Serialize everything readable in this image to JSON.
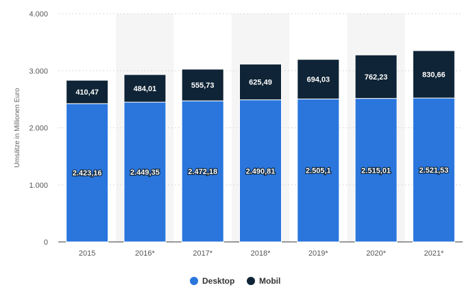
{
  "chart_data": {
    "type": "bar",
    "stacked": true,
    "title": "",
    "xlabel": "",
    "ylabel": "Umsätze in Millionen Euro",
    "ylim": [
      0,
      4000
    ],
    "yticks": [
      0,
      1000,
      2000,
      3000,
      4000
    ],
    "ytick_labels": [
      "0",
      "1.000",
      "2.000",
      "3.000",
      "4.000"
    ],
    "categories": [
      "2015",
      "2016*",
      "2017*",
      "2018*",
      "2019*",
      "2020*",
      "2021*"
    ],
    "series": [
      {
        "name": "Desktop",
        "color": "#2a76dd",
        "values": [
          2423.16,
          2449.35,
          2472.18,
          2490.81,
          2505.1,
          2515.01,
          2521.53
        ],
        "labels": [
          "2.423,16",
          "2.449,35",
          "2.472,18",
          "2.490,81",
          "2.505,1",
          "2.515,01",
          "2.521,53"
        ]
      },
      {
        "name": "Mobil",
        "color": "#0f2436",
        "values": [
          410.47,
          484.01,
          555.73,
          625.49,
          694.03,
          762.23,
          830.66
        ],
        "labels": [
          "410,47",
          "484,01",
          "555,73",
          "625,49",
          "694,03",
          "762,23",
          "830,66"
        ]
      }
    ],
    "grid": true,
    "legend_position": "bottom-center"
  }
}
